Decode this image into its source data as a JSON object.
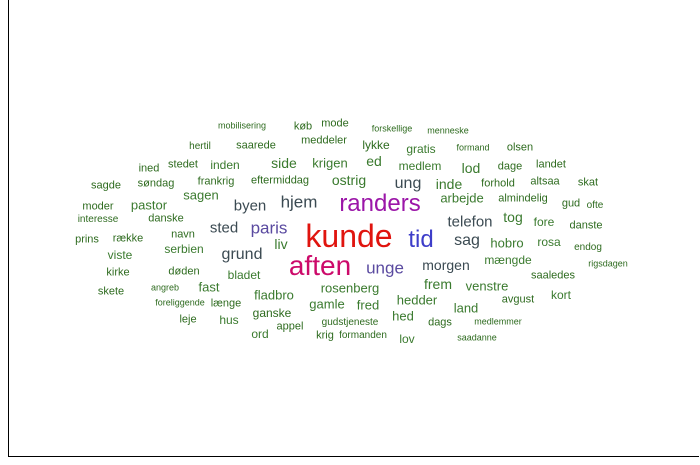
{
  "colors": {
    "darkgreen": "#2e6b1f",
    "green": "#3a7a2e",
    "slate": "#3b4a52",
    "purple": "#9b16a8",
    "red": "#e0140e",
    "magenta": "#cc0a6a",
    "blue": "#3d3dc9",
    "violet": "#5a4aa0"
  },
  "words": [
    {
      "text": "mobilisering",
      "c": "darkgreen"
    },
    {
      "text": "mode",
      "c": "darkgreen"
    },
    {
      "text": "køb",
      "c": "darkgreen"
    },
    {
      "text": "forskellige",
      "c": "darkgreen"
    },
    {
      "text": "menneske",
      "c": "darkgreen"
    },
    {
      "text": "meddeler",
      "c": "darkgreen"
    },
    {
      "text": "hertil",
      "c": "darkgreen"
    },
    {
      "text": "saarede",
      "c": "darkgreen"
    },
    {
      "text": "lykke",
      "c": "darkgreen"
    },
    {
      "text": "formand",
      "c": "darkgreen"
    },
    {
      "text": "olsen",
      "c": "darkgreen"
    },
    {
      "text": "gratis",
      "c": "green"
    },
    {
      "text": "ed",
      "c": "green"
    },
    {
      "text": "krigen",
      "c": "green"
    },
    {
      "text": "side",
      "c": "green"
    },
    {
      "text": "ined",
      "c": "darkgreen"
    },
    {
      "text": "stedet",
      "c": "darkgreen"
    },
    {
      "text": "inden",
      "c": "green"
    },
    {
      "text": "medlem",
      "c": "green"
    },
    {
      "text": "dage",
      "c": "darkgreen"
    },
    {
      "text": "landet",
      "c": "darkgreen"
    },
    {
      "text": "lod",
      "c": "green"
    },
    {
      "text": "sagde",
      "c": "darkgreen"
    },
    {
      "text": "søndag",
      "c": "darkgreen"
    },
    {
      "text": "frankrig",
      "c": "darkgreen"
    },
    {
      "text": "eftermiddag",
      "c": "darkgreen"
    },
    {
      "text": "ostrig",
      "c": "green"
    },
    {
      "text": "ung",
      "c": "slate"
    },
    {
      "text": "inde",
      "c": "green"
    },
    {
      "text": "forhold",
      "c": "darkgreen"
    },
    {
      "text": "altsaa",
      "c": "darkgreen"
    },
    {
      "text": "skat",
      "c": "darkgreen"
    },
    {
      "text": "sagen",
      "c": "green"
    },
    {
      "text": "hjem",
      "c": "slate"
    },
    {
      "text": "randers",
      "c": "purple"
    },
    {
      "text": "arbejde",
      "c": "green"
    },
    {
      "text": "almindelig",
      "c": "darkgreen"
    },
    {
      "text": "moder",
      "c": "darkgreen"
    },
    {
      "text": "pastor",
      "c": "green"
    },
    {
      "text": "byen",
      "c": "slate"
    },
    {
      "text": "gud",
      "c": "darkgreen"
    },
    {
      "text": "ofte",
      "c": "darkgreen"
    },
    {
      "text": "interesse",
      "c": "darkgreen"
    },
    {
      "text": "danske",
      "c": "darkgreen"
    },
    {
      "text": "tog",
      "c": "green"
    },
    {
      "text": "telefon",
      "c": "slate"
    },
    {
      "text": "fore",
      "c": "green"
    },
    {
      "text": "danste",
      "c": "darkgreen"
    },
    {
      "text": "sted",
      "c": "slate"
    },
    {
      "text": "paris",
      "c": "violet"
    },
    {
      "text": "kunde",
      "c": "red"
    },
    {
      "text": "tid",
      "c": "blue"
    },
    {
      "text": "prins",
      "c": "darkgreen"
    },
    {
      "text": "række",
      "c": "darkgreen"
    },
    {
      "text": "navn",
      "c": "darkgreen"
    },
    {
      "text": "liv",
      "c": "green"
    },
    {
      "text": "sag",
      "c": "slate"
    },
    {
      "text": "hobro",
      "c": "green"
    },
    {
      "text": "rosa",
      "c": "green"
    },
    {
      "text": "endog",
      "c": "darkgreen"
    },
    {
      "text": "serbien",
      "c": "green"
    },
    {
      "text": "grund",
      "c": "slate"
    },
    {
      "text": "viste",
      "c": "green"
    },
    {
      "text": "mængde",
      "c": "green"
    },
    {
      "text": "rigsdagen",
      "c": "darkgreen"
    },
    {
      "text": "aften",
      "c": "magenta"
    },
    {
      "text": "unge",
      "c": "violet"
    },
    {
      "text": "morgen",
      "c": "slate"
    },
    {
      "text": "kirke",
      "c": "darkgreen"
    },
    {
      "text": "døden",
      "c": "darkgreen"
    },
    {
      "text": "bladet",
      "c": "green"
    },
    {
      "text": "saaledes",
      "c": "darkgreen"
    },
    {
      "text": "angreb",
      "c": "darkgreen"
    },
    {
      "text": "fast",
      "c": "green"
    },
    {
      "text": "frem",
      "c": "green"
    },
    {
      "text": "venstre",
      "c": "green"
    },
    {
      "text": "skete",
      "c": "darkgreen"
    },
    {
      "text": "rosenberg",
      "c": "green"
    },
    {
      "text": "kort",
      "c": "green"
    },
    {
      "text": "foreliggende",
      "c": "darkgreen"
    },
    {
      "text": "længe",
      "c": "darkgreen"
    },
    {
      "text": "fladbro",
      "c": "green"
    },
    {
      "text": "hedder",
      "c": "green"
    },
    {
      "text": "avgust",
      "c": "darkgreen"
    },
    {
      "text": "gamle",
      "c": "green"
    },
    {
      "text": "fred",
      "c": "green"
    },
    {
      "text": "land",
      "c": "green"
    },
    {
      "text": "leje",
      "c": "darkgreen"
    },
    {
      "text": "hus",
      "c": "green"
    },
    {
      "text": "ganske",
      "c": "darkgreen"
    },
    {
      "text": "hed",
      "c": "green"
    },
    {
      "text": "appel",
      "c": "darkgreen"
    },
    {
      "text": "gudstjeneste",
      "c": "darkgreen"
    },
    {
      "text": "dags",
      "c": "darkgreen"
    },
    {
      "text": "medlemmer",
      "c": "darkgreen"
    },
    {
      "text": "ord",
      "c": "green"
    },
    {
      "text": "krig",
      "c": "darkgreen"
    },
    {
      "text": "formanden",
      "c": "darkgreen"
    },
    {
      "text": "lov",
      "c": "green"
    },
    {
      "text": "saadanne",
      "c": "darkgreen"
    }
  ]
}
